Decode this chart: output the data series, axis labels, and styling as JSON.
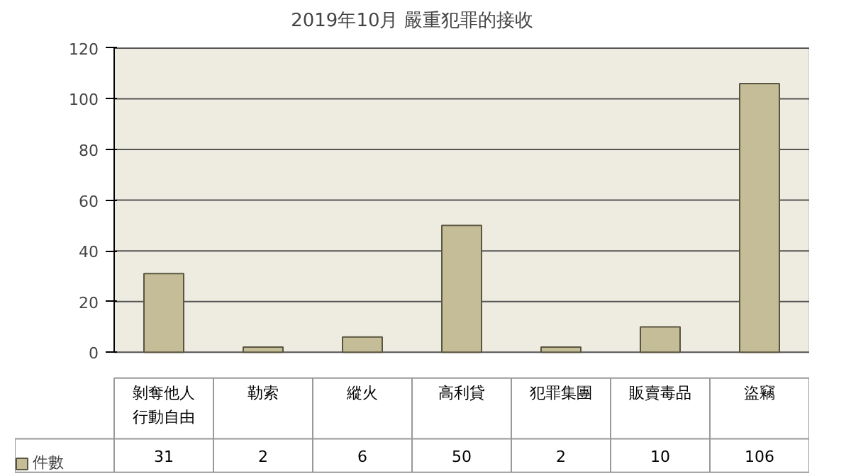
{
  "chart_data": {
    "type": "bar",
    "title": "2019年10月 嚴重犯罪的接收",
    "categories": [
      "剝奪他人行動自由",
      "勒索",
      "縱火",
      "高利貸",
      "犯罪集團",
      "販賣毒品",
      "盜竊"
    ],
    "series": [
      {
        "name": "件數",
        "color": "#c4bd97",
        "values": [
          31,
          2,
          6,
          50,
          2,
          10,
          106
        ]
      }
    ],
    "ylim": [
      0,
      120
    ],
    "yticks": [
      0,
      20,
      40,
      60,
      80,
      100,
      120
    ],
    "grid": "y",
    "legend": "bottom",
    "data_labels": true
  }
}
